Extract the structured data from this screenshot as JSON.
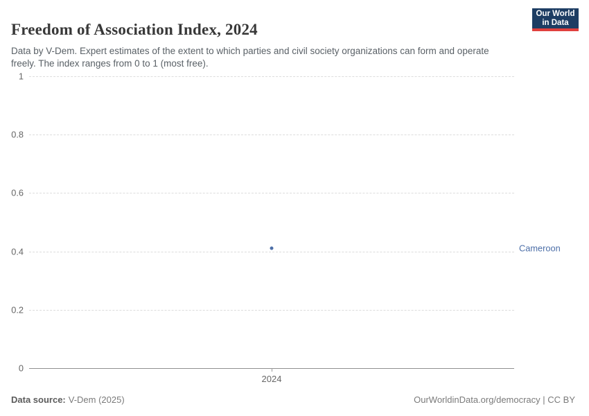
{
  "header": {
    "title": "Freedom of Association Index, 2024",
    "subtitle": "Data by V-Dem. Expert estimates of the extent to which parties and civil society organizations can form and operate freely. The index ranges from 0 to 1 (most free).",
    "logo": {
      "line1": "Our World",
      "line2": "in Data",
      "background_color": "#1d3d63",
      "accent_color": "#e0403d"
    }
  },
  "chart_data": {
    "type": "scatter",
    "title": "Freedom of Association Index, 2024",
    "x": [
      2024
    ],
    "xticks": [
      "2024"
    ],
    "series": [
      {
        "name": "Cameroon",
        "values": [
          0.41
        ],
        "color": "#4d6fa8"
      }
    ],
    "xlabel": "",
    "ylabel": "",
    "ylim": [
      0,
      1
    ],
    "yticks": [
      0,
      0.2,
      0.4,
      0.6,
      0.8,
      1
    ],
    "grid": "horizontal-dashed",
    "legend": "entity-label-right",
    "gridline_color": "#dcdcdc",
    "zero_line_color": "#8f8f8f",
    "tick_label_color": "#666666"
  },
  "footer": {
    "source_label": "Data source:",
    "source_value": "V-Dem (2025)",
    "credit": "OurWorldinData.org/democracy | CC BY"
  }
}
